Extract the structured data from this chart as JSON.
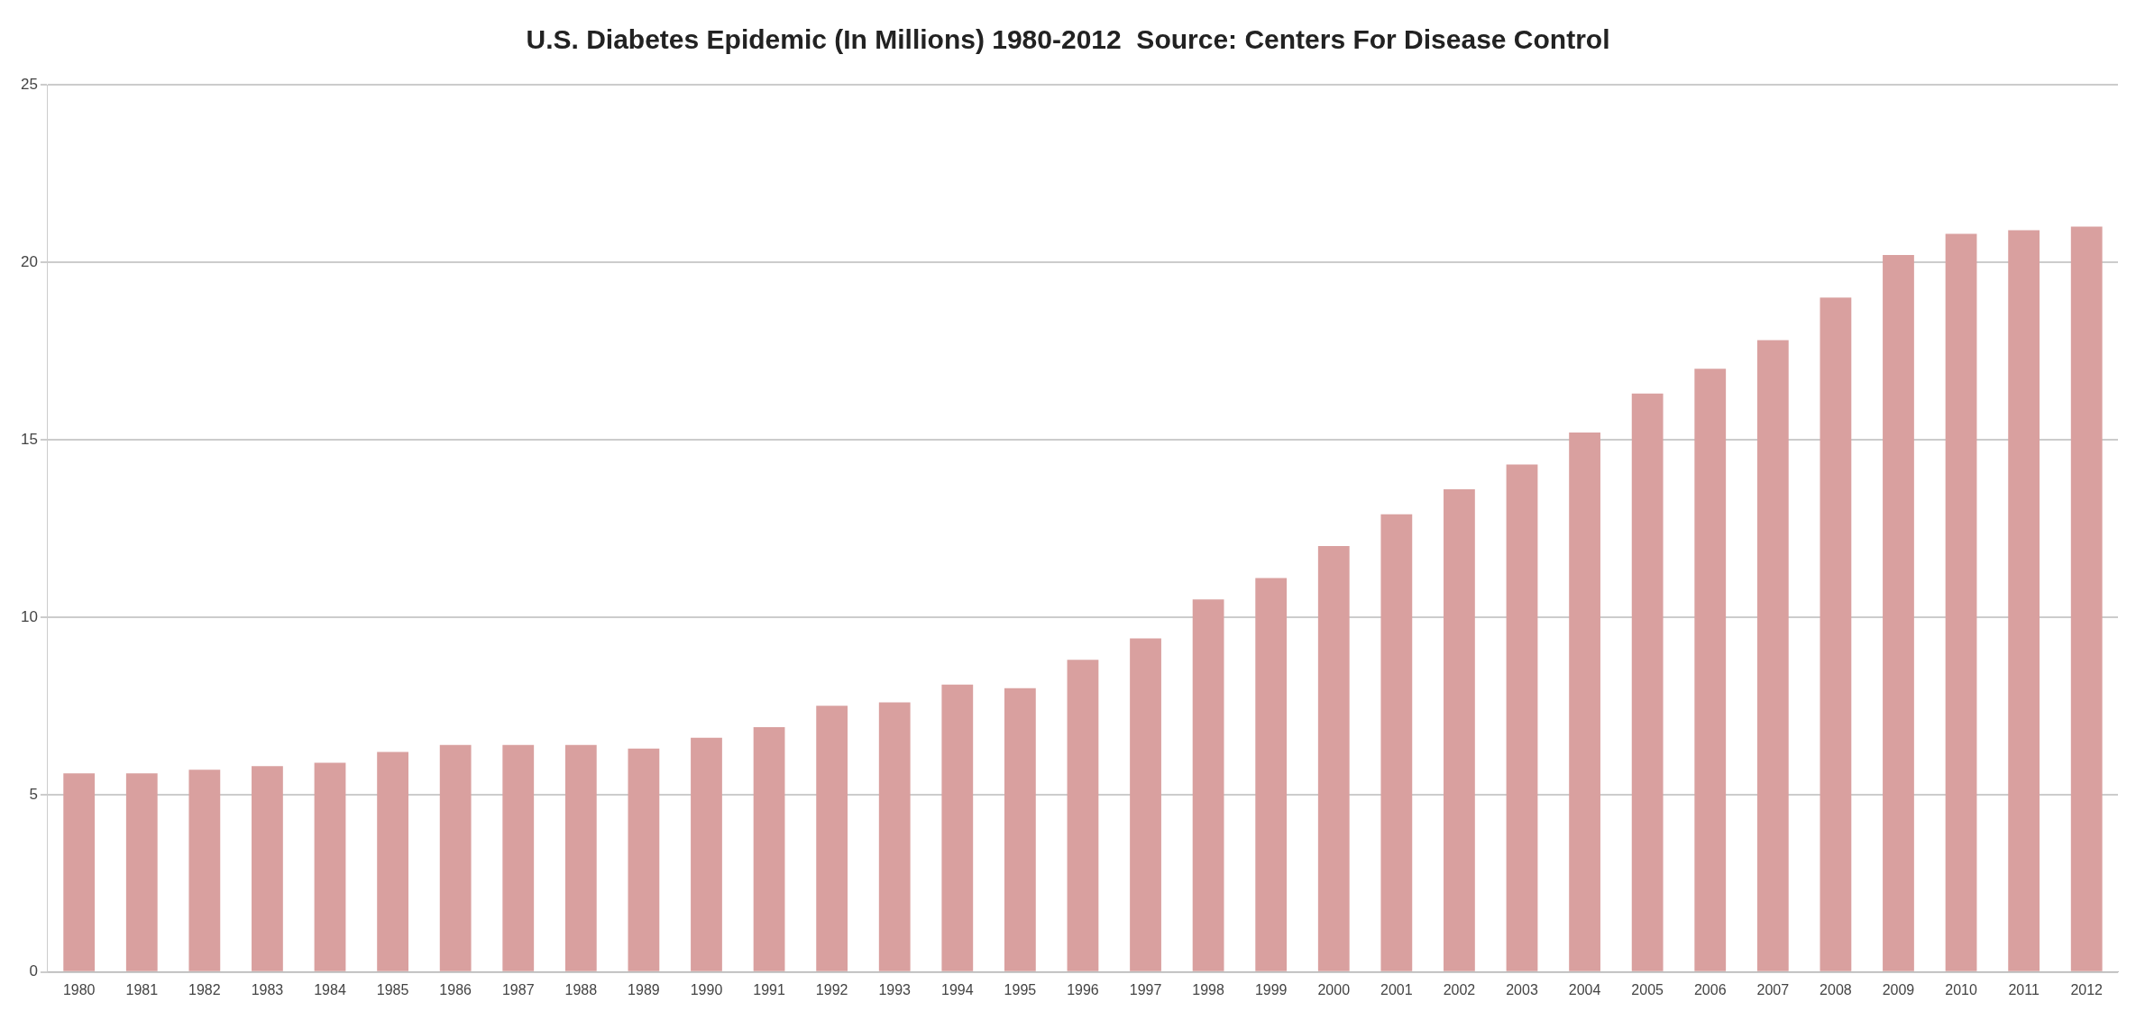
{
  "chart_data": {
    "type": "bar",
    "title": "U.S. Diabetes Epidemic (In Millions) 1980-2012  Source: Centers For Disease Control",
    "categories": [
      "1980",
      "1981",
      "1982",
      "1983",
      "1984",
      "1985",
      "1986",
      "1987",
      "1988",
      "1989",
      "1990",
      "1991",
      "1992",
      "1993",
      "1994",
      "1995",
      "1996",
      "1997",
      "1998",
      "1999",
      "2000",
      "2001",
      "2002",
      "2003",
      "2004",
      "2005",
      "2006",
      "2007",
      "2008",
      "2009",
      "2010",
      "2011",
      "2012"
    ],
    "values": [
      5.6,
      5.6,
      5.7,
      5.8,
      5.9,
      6.2,
      6.4,
      6.4,
      6.4,
      6.3,
      6.6,
      6.9,
      7.5,
      7.6,
      8.1,
      8.0,
      8.8,
      9.4,
      10.5,
      11.1,
      12.0,
      12.9,
      13.6,
      14.3,
      15.2,
      16.3,
      17.0,
      17.8,
      19.0,
      20.2,
      20.8,
      20.9,
      21.0
    ],
    "color": "#d9a09f",
    "ylim": [
      0,
      25
    ],
    "yticks": [
      0,
      5,
      10,
      15,
      20,
      25
    ],
    "grid": "y"
  }
}
